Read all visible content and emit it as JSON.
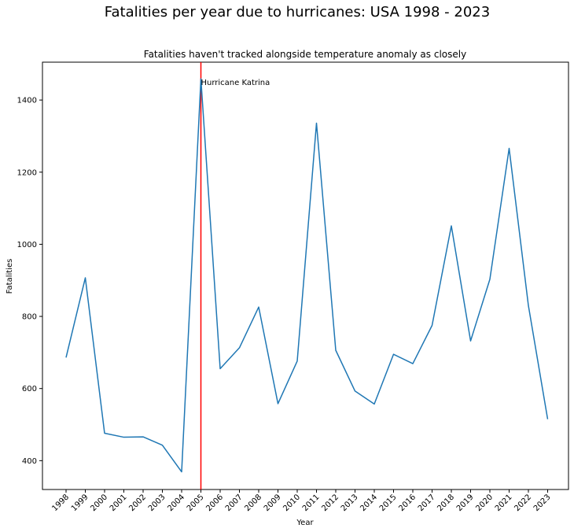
{
  "chart_data": {
    "type": "line",
    "suptitle": "Fatalities per year due to hurricanes: USA 1998 - 2023",
    "title": "Fatalities haven't tracked alongside temperature anomaly as closely",
    "xlabel": "Year",
    "ylabel": "Fatalities",
    "x": [
      "1998",
      "1999",
      "2000",
      "2001",
      "2002",
      "2003",
      "2004",
      "2005",
      "2006",
      "2007",
      "2008",
      "2009",
      "2010",
      "2011",
      "2012",
      "2013",
      "2014",
      "2015",
      "2016",
      "2017",
      "2018",
      "2019",
      "2020",
      "2021",
      "2022",
      "2023"
    ],
    "yticks": [
      400,
      600,
      800,
      1000,
      1200,
      1400
    ],
    "ylim": [
      320,
      1505
    ],
    "series": [
      {
        "values": [
          686,
          907,
          476,
          465,
          466,
          443,
          369,
          1459,
          655,
          713,
          826,
          558,
          676,
          1336,
          706,
          593,
          557,
          695,
          669,
          775,
          1051,
          732,
          903,
          1266,
          830,
          515
        ],
        "color": "#1f77b4"
      }
    ],
    "vline": {
      "x": "2005",
      "color": "#ff0000"
    },
    "annotation": {
      "x": "2005",
      "y": 1450,
      "text": "Hurricane Katrina"
    },
    "grid": false
  }
}
